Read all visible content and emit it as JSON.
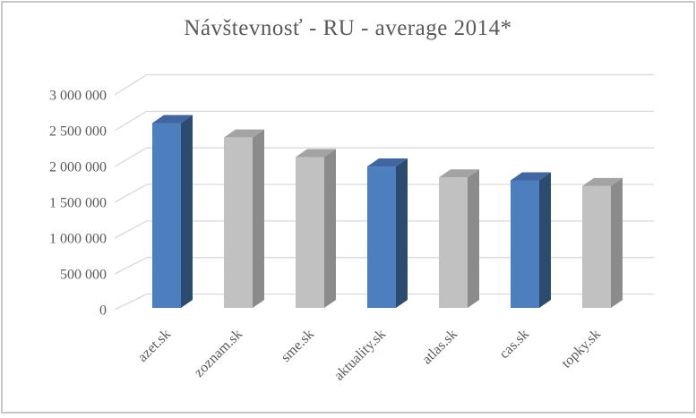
{
  "frame": {
    "background": "#ffffff",
    "border_color": "#c6c6c6"
  },
  "chart_data": {
    "type": "bar",
    "style": "3d-column",
    "title": "Návštevnosť - RU - average 2014*",
    "xlabel": "",
    "ylabel": "",
    "legend": "none",
    "grid": true,
    "ylim": [
      0,
      3000000
    ],
    "categories": [
      "azet.sk",
      "zoznam.sk",
      "sme.sk",
      "aktuality.sk",
      "atlas.sk",
      "cas.sk",
      "topky.sk"
    ],
    "values": [
      2550000,
      2350000,
      2080000,
      1950000,
      1800000,
      1760000,
      1680000
    ],
    "bar_palette_keys": [
      "blue",
      "gray",
      "gray",
      "blue",
      "gray",
      "blue",
      "gray"
    ],
    "y_ticks": [
      "3 000 000",
      "2 500 000",
      "2 000 000",
      "1 500 000",
      "1 000 000",
      "500 000",
      "0"
    ],
    "y_tick_values": [
      3000000,
      2500000,
      2000000,
      1500000,
      1000000,
      500000,
      0
    ],
    "colors": {
      "blue": {
        "front": "#4d7ebd",
        "top": "#3f67a1",
        "side": "#2d4b70"
      },
      "gray": {
        "front": "#c1c1c1",
        "top": "#a3a3a3",
        "side": "#8b8b8b"
      },
      "gridline": "#d9d9d9",
      "text": "#595959"
    }
  }
}
